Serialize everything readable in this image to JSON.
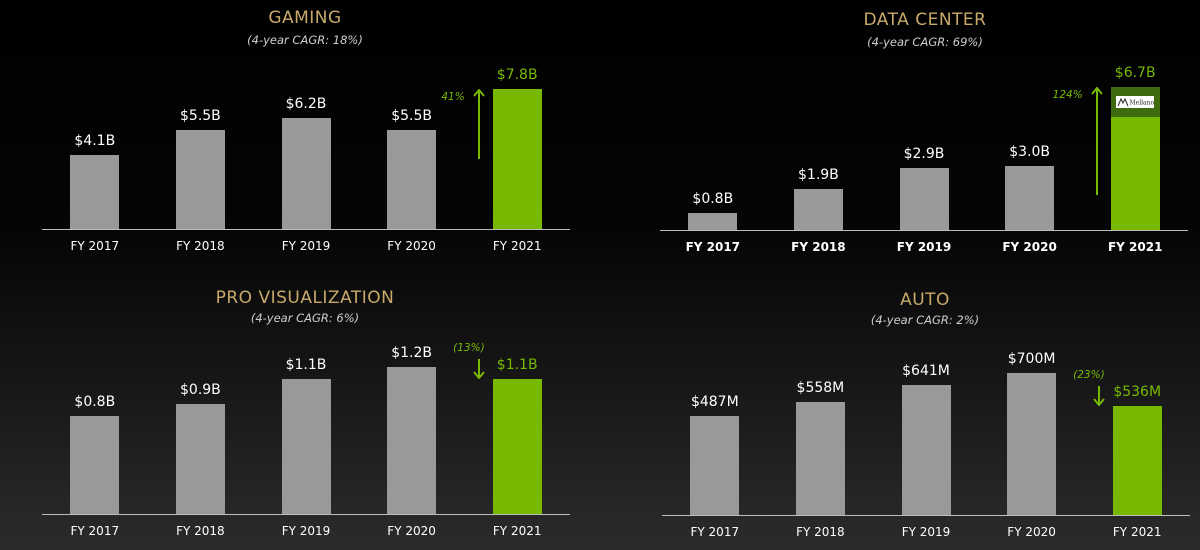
{
  "colors": {
    "title": "#c8a96a",
    "bar": "#999999",
    "highlight": "#76b900",
    "mellanox_segment": "#3f6b0f",
    "axis": "#bdbdbd"
  },
  "chart_data": [
    {
      "type": "bar",
      "title": "GAMING",
      "subtitle": "(4-year CAGR: 18%)",
      "categories": [
        "FY 2017",
        "FY 2018",
        "FY 2019",
        "FY 2020",
        "FY 2021"
      ],
      "values": [
        4.1,
        5.5,
        6.2,
        5.5,
        7.8
      ],
      "unit": "$B",
      "labels": [
        "$4.1B",
        "$5.5B",
        "$6.2B",
        "$5.5B",
        "$7.8B"
      ],
      "highlight_index": 4,
      "change": {
        "text": "41%",
        "direction": "up"
      },
      "ylim": [
        0,
        7.8
      ],
      "grid": false,
      "legend": "none",
      "bold_ticks": false
    },
    {
      "type": "bar",
      "title": "DATA CENTER",
      "subtitle": "(4-year CAGR: 69%)",
      "categories": [
        "FY 2017",
        "FY 2018",
        "FY 2019",
        "FY 2020",
        "FY 2021"
      ],
      "values": [
        0.8,
        1.9,
        2.9,
        3.0,
        6.7
      ],
      "unit": "$B",
      "labels": [
        "$0.8B",
        "$1.9B",
        "$2.9B",
        "$3.0B",
        "$6.7B"
      ],
      "highlight_index": 4,
      "highlight_stack": {
        "base": 5.3,
        "segment": 1.4,
        "segment_logo": "Mellanox"
      },
      "change": {
        "text": "124%",
        "direction": "up"
      },
      "ylim": [
        0,
        6.7
      ],
      "grid": false,
      "legend": "none",
      "bold_ticks": true
    },
    {
      "type": "bar",
      "title": "PRO VISUALIZATION",
      "subtitle": "(4-year CAGR: 6%)",
      "categories": [
        "FY 2017",
        "FY 2018",
        "FY 2019",
        "FY 2020",
        "FY 2021"
      ],
      "values": [
        0.8,
        0.9,
        1.1,
        1.2,
        1.1
      ],
      "unit": "$B",
      "labels": [
        "$0.8B",
        "$0.9B",
        "$1.1B",
        "$1.2B",
        "$1.1B"
      ],
      "highlight_index": 4,
      "change": {
        "text": "(13%)",
        "direction": "down"
      },
      "ylim": [
        0,
        1.2
      ],
      "grid": false,
      "legend": "none",
      "bold_ticks": false
    },
    {
      "type": "bar",
      "title": "AUTO",
      "subtitle": "(4-year CAGR: 2%)",
      "categories": [
        "FY 2017",
        "FY 2018",
        "FY 2019",
        "FY 2020",
        "FY 2021"
      ],
      "values": [
        487,
        558,
        641,
        700,
        536
      ],
      "unit": "$M",
      "labels": [
        "$487M",
        "$558M",
        "$641M",
        "$700M",
        "$536M"
      ],
      "highlight_index": 4,
      "change": {
        "text": "(23%)",
        "direction": "down"
      },
      "ylim": [
        0,
        700
      ],
      "grid": false,
      "legend": "none",
      "bold_ticks": false
    }
  ]
}
